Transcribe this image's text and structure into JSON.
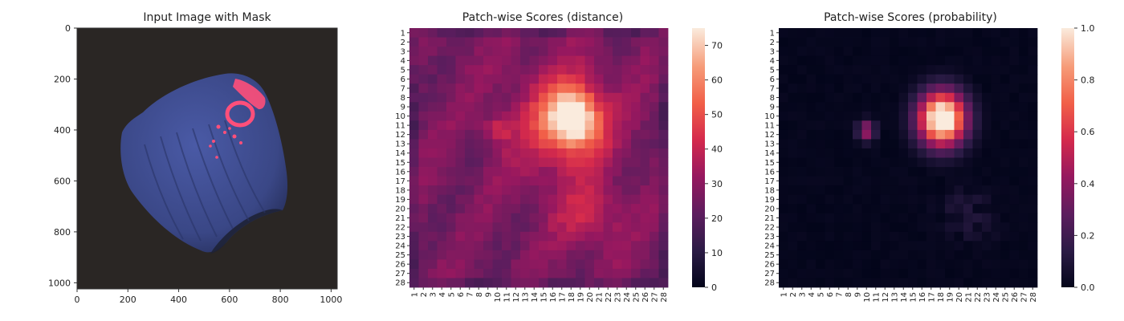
{
  "chart_data": [
    {
      "type": "image",
      "title": "Input Image with Mask",
      "xlim": [
        0,
        1024
      ],
      "ylim": [
        1024,
        0
      ],
      "xticks": [
        "0",
        "200",
        "400",
        "600",
        "800",
        "1000"
      ],
      "yticks": [
        "0",
        "200",
        "400",
        "600",
        "800",
        "1000"
      ],
      "colors": {
        "background": "#2a2624",
        "object": "#3d4c8f",
        "object_shadow": "#1e2236",
        "mask": "#ff4f7a"
      }
    },
    {
      "type": "heatmap",
      "title": "Patch-wise Scores (distance)",
      "rows": 28,
      "cols": 28,
      "labels": [
        "1",
        "2",
        "3",
        "4",
        "5",
        "6",
        "7",
        "8",
        "9",
        "10",
        "11",
        "12",
        "13",
        "14",
        "15",
        "16",
        "17",
        "18",
        "19",
        "20",
        "21",
        "22",
        "23",
        "24",
        "25",
        "26",
        "27",
        "28"
      ],
      "colorbar_ticks": [
        "0",
        "10",
        "20",
        "30",
        "40",
        "50",
        "60",
        "70"
      ],
      "vmin": 0,
      "vmax": 75,
      "colormap": "rocket",
      "peak_center": [
        18.2,
        10.3
      ],
      "peak_value": 74
    },
    {
      "type": "heatmap",
      "title": "Patch-wise Scores (probability)",
      "rows": 28,
      "cols": 28,
      "labels": [
        "1",
        "2",
        "3",
        "4",
        "5",
        "6",
        "7",
        "8",
        "9",
        "10",
        "11",
        "12",
        "13",
        "14",
        "15",
        "16",
        "17",
        "18",
        "19",
        "20",
        "21",
        "22",
        "23",
        "24",
        "25",
        "26",
        "27",
        "28"
      ],
      "colorbar_ticks": [
        "0.0",
        "0.2",
        "0.4",
        "0.6",
        "0.8",
        "1.0"
      ],
      "vmin": 0,
      "vmax": 1,
      "colormap": "rocket",
      "peak_center": [
        18.2,
        10.3
      ],
      "peak_value": 1.0
    }
  ]
}
